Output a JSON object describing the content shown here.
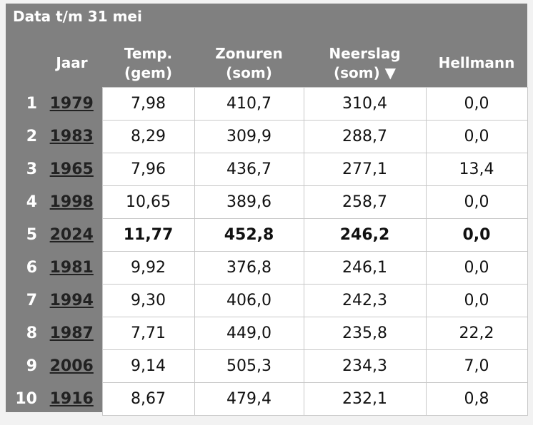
{
  "title": "Data t/m 31 mei",
  "table": {
    "headers": [
      [],
      [
        "Jaar"
      ],
      [
        "Temp.",
        "(gem)"
      ],
      [
        "Zonuren",
        "(som)"
      ],
      [
        "Neerslag",
        "(som) ▼"
      ],
      [
        "Hellmann"
      ]
    ],
    "rows": [
      {
        "cells": [
          "1",
          "1979",
          "7,98",
          "410,7",
          "310,4",
          "0,0"
        ]
      },
      {
        "cells": [
          "2",
          "1983",
          "8,29",
          "309,9",
          "288,7",
          "0,0"
        ]
      },
      {
        "cells": [
          "3",
          "1965",
          "7,96",
          "436,7",
          "277,1",
          "13,4"
        ]
      },
      {
        "cells": [
          "4",
          "1998",
          "10,65",
          "389,6",
          "258,7",
          "0,0"
        ]
      },
      {
        "cells": [
          "5",
          "2024",
          "11,77",
          "452,8",
          "246,2",
          "0,0"
        ],
        "bold": true
      },
      {
        "cells": [
          "6",
          "1981",
          "9,92",
          "376,8",
          "246,1",
          "0,0"
        ]
      },
      {
        "cells": [
          "7",
          "1994",
          "9,30",
          "406,0",
          "242,3",
          "0,0"
        ]
      },
      {
        "cells": [
          "8",
          "1987",
          "7,71",
          "449,0",
          "235,8",
          "22,2"
        ]
      },
      {
        "cells": [
          "9",
          "2006",
          "9,14",
          "505,3",
          "234,3",
          "7,0"
        ]
      },
      {
        "cells": [
          "10",
          "1916",
          "8,67",
          "479,4",
          "232,1",
          "0,8"
        ]
      }
    ]
  }
}
